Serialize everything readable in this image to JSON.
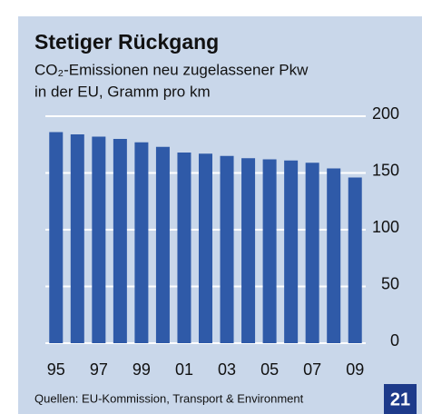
{
  "chart_data": {
    "type": "bar",
    "title": "Stetiger Rückgang",
    "subtitle": [
      "CO₂-Emissionen neu zugelassener Pkw",
      "in der EU, Gramm pro km"
    ],
    "categories": [
      "95",
      null,
      "97",
      null,
      "99",
      null,
      "01",
      null,
      "03",
      null,
      "05",
      null,
      "07",
      null,
      "09"
    ],
    "values": [
      186,
      184,
      182,
      180,
      177,
      173,
      168,
      167,
      165,
      163,
      162,
      161,
      159,
      154,
      146
    ],
    "color": "#2f5aa8",
    "ylim": [
      0,
      200
    ],
    "yticks": [
      0,
      50,
      100,
      150,
      200
    ],
    "grid": true,
    "source": "Quellen: EU-Kommission, Transport & Environment",
    "page_number": "21"
  }
}
